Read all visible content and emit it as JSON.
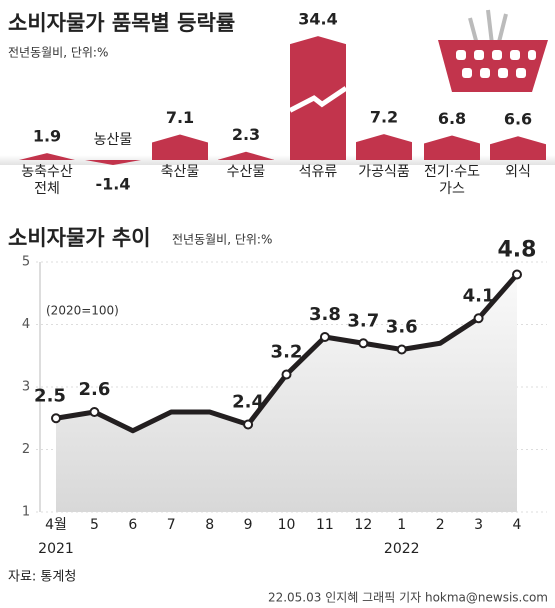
{
  "charts": [
    {
      "type": "bar",
      "title": "소비자물가 품목별 등락률",
      "subtitle": "전년동월비, 단위:%",
      "categories": [
        "농축수산\n전체",
        "농산물",
        "축산물",
        "수산물",
        "석유류",
        "가공식품",
        "전기·수도\n가스",
        "외식"
      ],
      "values": [
        1.9,
        -1.4,
        7.1,
        2.3,
        34.4,
        7.2,
        6.8,
        6.6
      ],
      "color": "#c2344c"
    },
    {
      "type": "line",
      "title": "소비자물가 추이",
      "subtitle": "전년동월비, 단위:%",
      "annotation": "(2020=100)",
      "categories": [
        "4월",
        "5",
        "6",
        "7",
        "8",
        "9",
        "10",
        "11",
        "12",
        "1",
        "2",
        "3",
        "4"
      ],
      "year_labels": [
        {
          "index": 0,
          "label": "2021"
        },
        {
          "index": 9,
          "label": "2022"
        }
      ],
      "values": [
        2.5,
        2.6,
        2.3,
        2.6,
        2.6,
        2.4,
        3.2,
        3.8,
        3.7,
        3.6,
        3.7,
        4.1,
        4.8
      ],
      "value_labels": [
        "2.5",
        "2.6",
        null,
        null,
        null,
        "2.4",
        "3.2",
        "3.8",
        "3.7",
        "3.6",
        null,
        "4.1",
        "4.8"
      ],
      "color": "#231f20",
      "ylim": [
        1,
        5
      ],
      "yticks": [
        1,
        2,
        3,
        4,
        5
      ],
      "grid": true
    }
  ],
  "source": "자료: 통계청",
  "credit": "22.05.03 인지혜 그래픽 기자 hokma@newsis.com"
}
